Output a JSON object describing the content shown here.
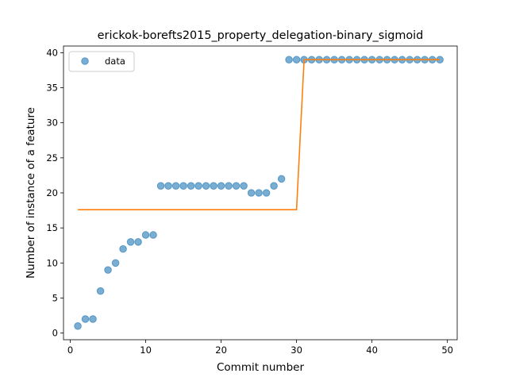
{
  "chart_data": {
    "type": "scatter",
    "title": "erickok-borefts2015_property_delegation-binary_sigmoid",
    "xlabel": "Commit number",
    "ylabel": "Number of instance of a feature",
    "xlim": [
      -0.9,
      51.3
    ],
    "ylim": [
      -0.95,
      40.95
    ],
    "xticks": [
      0,
      10,
      20,
      30,
      40,
      50
    ],
    "yticks": [
      0,
      5,
      10,
      15,
      20,
      25,
      30,
      35,
      40
    ],
    "legend": {
      "placement": "top-left",
      "entries": [
        "data"
      ]
    },
    "colors": {
      "data": "#1f77b4",
      "fit": "#ff7f0e"
    },
    "series": [
      {
        "name": "data",
        "kind": "scatter",
        "x": [
          1,
          2,
          3,
          4,
          5,
          6,
          7,
          8,
          9,
          10,
          11,
          12,
          13,
          14,
          15,
          16,
          17,
          18,
          19,
          20,
          21,
          22,
          23,
          24,
          25,
          26,
          27,
          28,
          29,
          30,
          31,
          32,
          33,
          34,
          35,
          36,
          37,
          38,
          39,
          40,
          41,
          42,
          43,
          44,
          45,
          46,
          47,
          48,
          49
        ],
        "y": [
          1,
          2,
          2,
          6,
          9,
          10,
          12,
          13,
          13,
          14,
          14,
          21,
          21,
          21,
          21,
          21,
          21,
          21,
          21,
          21,
          21,
          21,
          21,
          20,
          20,
          20,
          21,
          22,
          39,
          39,
          39,
          39,
          39,
          39,
          39,
          39,
          39,
          39,
          39,
          39,
          39,
          39,
          39,
          39,
          39,
          39,
          39,
          39,
          39
        ]
      },
      {
        "kind": "line",
        "x": [
          1,
          30,
          31,
          49
        ],
        "y": [
          17.6,
          17.6,
          39,
          39
        ]
      }
    ]
  }
}
